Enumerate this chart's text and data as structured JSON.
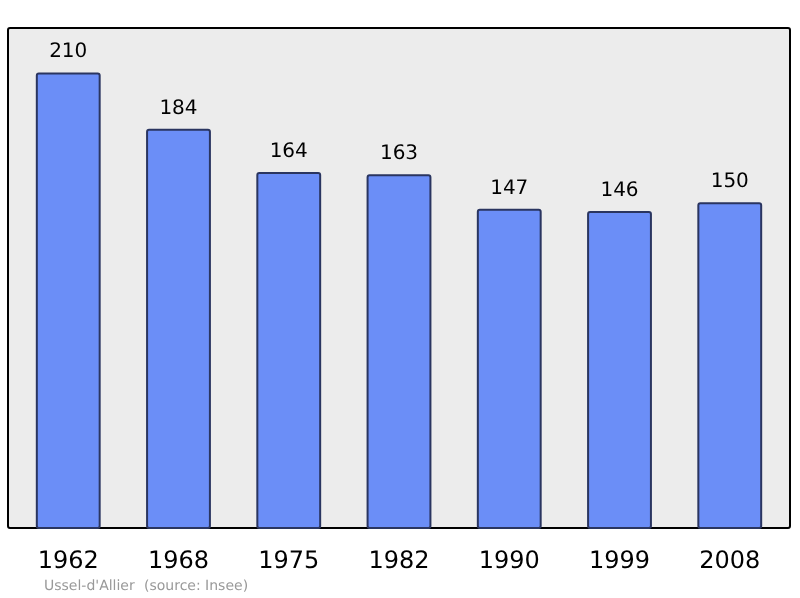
{
  "chart_data": {
    "type": "bar",
    "categories": [
      "1962",
      "1968",
      "1975",
      "1982",
      "1990",
      "1999",
      "2008"
    ],
    "values": [
      210,
      184,
      164,
      163,
      147,
      146,
      150
    ],
    "color": "#6b8ef7",
    "data_labels": true,
    "annotations": [
      "Ussel-d'Allier",
      "(source: Insee)"
    ]
  }
}
